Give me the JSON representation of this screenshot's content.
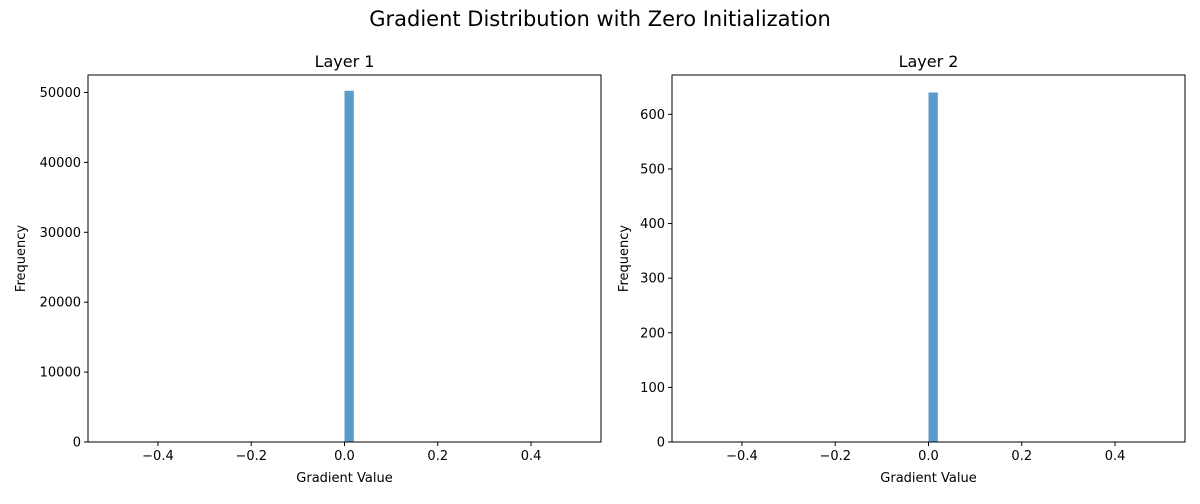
{
  "figure": {
    "suptitle": "Gradient Distribution with Zero Initialization"
  },
  "chart_data": [
    {
      "type": "bar",
      "title": "Layer 1",
      "xlabel": "Gradient Value",
      "ylabel": "Frequency",
      "xlim": [
        -0.55,
        0.55
      ],
      "ylim": [
        0,
        52500
      ],
      "xticks": [
        -0.4,
        -0.2,
        0.0,
        0.2,
        0.4
      ],
      "xtick_labels": [
        "−0.4",
        "−0.2",
        "0.0",
        "0.2",
        "0.4"
      ],
      "yticks": [
        0,
        10000,
        20000,
        30000,
        40000,
        50000
      ],
      "ytick_labels": [
        "0",
        "10000",
        "20000",
        "30000",
        "40000",
        "50000"
      ],
      "bars": [
        {
          "x0": 0.0,
          "x1": 0.02,
          "value": 50240
        }
      ],
      "grid": false,
      "color": "#5b9bc9"
    },
    {
      "type": "bar",
      "title": "Layer 2",
      "xlabel": "Gradient Value",
      "ylabel": "Frequency",
      "xlim": [
        -0.55,
        0.55
      ],
      "ylim": [
        0,
        672
      ],
      "xticks": [
        -0.4,
        -0.2,
        0.0,
        0.2,
        0.4
      ],
      "xtick_labels": [
        "−0.4",
        "−0.2",
        "0.0",
        "0.2",
        "0.4"
      ],
      "yticks": [
        0,
        100,
        200,
        300,
        400,
        500,
        600
      ],
      "ytick_labels": [
        "0",
        "100",
        "200",
        "300",
        "400",
        "500",
        "600"
      ],
      "bars": [
        {
          "x0": 0.0,
          "x1": 0.02,
          "value": 640
        }
      ],
      "grid": false,
      "color": "#5b9bc9"
    }
  ]
}
